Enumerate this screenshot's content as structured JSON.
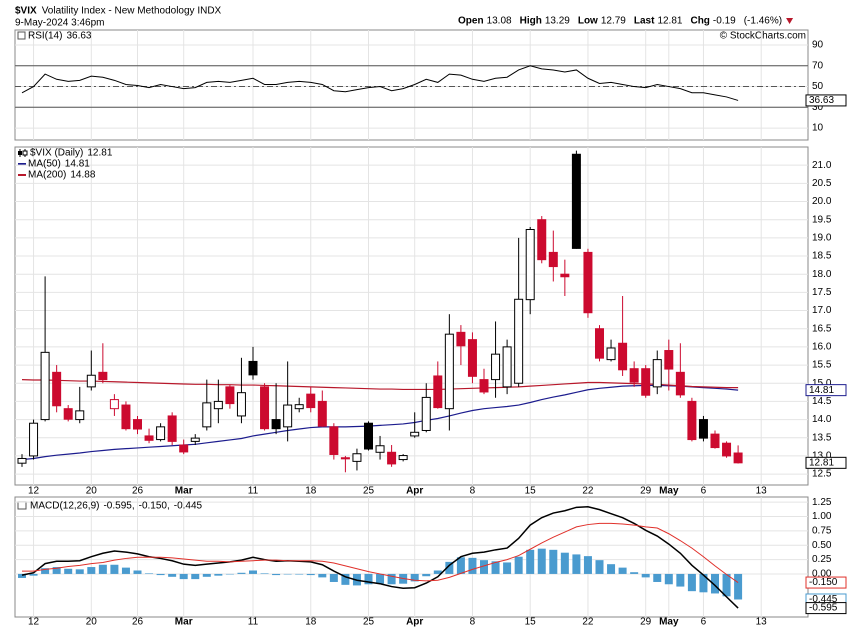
{
  "header": {
    "symbol": "$VIX",
    "name": "Volatility Index - New Methodology INDX",
    "timestamp": "9-May-2024 3:46pm",
    "quote": [
      {
        "label": "Open",
        "value": 13.08
      },
      {
        "label": "High",
        "value": 13.29
      },
      {
        "label": "Low",
        "value": 12.79
      },
      {
        "label": "Last",
        "value": 12.81
      },
      {
        "label": "Chg",
        "value": -0.19
      }
    ],
    "change_pct": "(-1.46%)",
    "copyright": "© StockCharts.com"
  },
  "chart_data": [
    {
      "type": "line",
      "label": "RSI(14)",
      "last": 36.63,
      "color": "#000000",
      "ylim": [
        -1.5,
        104.5
      ],
      "yticks": [
        10,
        30,
        50,
        70,
        90
      ],
      "overbought": 70,
      "oversold": 30,
      "midline": 50,
      "values": [
        44,
        50,
        62,
        57,
        55,
        56,
        60,
        59,
        56,
        52,
        51,
        49,
        52,
        50,
        48,
        49,
        54,
        55,
        54,
        56,
        58,
        52,
        52,
        54,
        55,
        54,
        52,
        46,
        45,
        47,
        49,
        50,
        46,
        48,
        52,
        57,
        54,
        62,
        61,
        57,
        55,
        58,
        59,
        66,
        70,
        67,
        66,
        64,
        66,
        58,
        53,
        54,
        52,
        50,
        49,
        52,
        50,
        48,
        44,
        44,
        42,
        40,
        36.63,
        null,
        null
      ]
    },
    {
      "type": "candlestick",
      "label": "$VIX (Daily)",
      "last": 12.81,
      "up_color": "#ffffff",
      "down_color": "#cc0a2f",
      "ylim": [
        12.2,
        21.5
      ],
      "yticks": [
        12.5,
        {
          "value": 13,
          "label": "13.0"
        },
        13.5,
        {
          "value": 14,
          "label": "14.0"
        },
        14.5,
        {
          "value": 15,
          "label": "15.0"
        },
        15.5,
        {
          "value": 16,
          "label": "16.0"
        },
        16.5,
        {
          "value": 17,
          "label": "17.0"
        },
        17.5,
        {
          "value": 18,
          "label": "18.0"
        },
        18.5,
        {
          "value": 19,
          "label": "19.0"
        },
        19.5,
        {
          "value": 20,
          "label": "20.0"
        },
        20.5,
        {
          "value": 21,
          "label": "21.0"
        }
      ],
      "categories": [
        null,
        "12",
        null,
        null,
        null,
        null,
        "20",
        null,
        null,
        null,
        "26",
        null,
        null,
        null,
        "Mar",
        null,
        null,
        null,
        null,
        null,
        "11",
        null,
        null,
        null,
        null,
        "18",
        null,
        null,
        null,
        null,
        "25",
        null,
        null,
        null,
        "Apr",
        null,
        null,
        null,
        null,
        "8",
        null,
        null,
        null,
        null,
        "15",
        null,
        null,
        null,
        null,
        "22",
        null,
        null,
        null,
        null,
        "29",
        null,
        "May",
        null,
        null,
        "6",
        null,
        null,
        null,
        null,
        "13"
      ],
      "open": [
        12.8,
        13.0,
        14.0,
        15.3,
        14.3,
        14.0,
        14.9,
        15.3,
        14.3,
        14.4,
        14.0,
        13.55,
        13.45,
        14.1,
        13.3,
        13.4,
        13.8,
        14.3,
        14.9,
        14.1,
        15.6,
        14.9,
        14.0,
        13.8,
        14.3,
        14.7,
        14.5,
        13.8,
        12.95,
        12.85,
        13.9,
        13.1,
        13.1,
        12.9,
        13.55,
        13.7,
        15.2,
        14.3,
        16.4,
        16.2,
        15.1,
        15.1,
        14.9,
        15.0,
        17.3,
        19.5,
        18.6,
        18.0,
        21.3,
        18.6,
        16.5,
        15.65,
        16.1,
        15.4,
        15.4,
        14.9,
        15.9,
        15.3,
        14.5,
        14.0,
        13.6,
        13.35,
        13.08,
        null,
        null
      ],
      "high": [
        13.05,
        14.0,
        17.94,
        15.5,
        14.4,
        14.9,
        15.9,
        16.1,
        14.7,
        14.5,
        14.1,
        13.75,
        13.9,
        14.2,
        13.45,
        13.6,
        15.1,
        15.1,
        14.95,
        15.7,
        16.0,
        15.0,
        15.0,
        15.6,
        14.6,
        14.9,
        14.8,
        13.9,
        13.0,
        13.2,
        13.95,
        13.55,
        13.3,
        13.05,
        14.2,
        15.0,
        15.6,
        16.9,
        16.6,
        16.4,
        15.4,
        16.7,
        16.2,
        19.0,
        19.3,
        19.6,
        19.2,
        18.4,
        21.4,
        18.7,
        16.6,
        16.2,
        17.4,
        15.6,
        15.5,
        15.9,
        16.2,
        16.1,
        14.6,
        14.1,
        13.7,
        13.4,
        13.29,
        null,
        null
      ],
      "low": [
        12.7,
        12.9,
        13.95,
        14.2,
        13.95,
        13.9,
        14.8,
        15.0,
        14.1,
        13.7,
        13.6,
        13.35,
        13.4,
        13.3,
        13.05,
        13.3,
        13.7,
        13.9,
        14.3,
        13.9,
        15.1,
        13.7,
        13.6,
        13.4,
        14.2,
        14.2,
        13.8,
        12.9,
        12.55,
        12.6,
        13.15,
        12.9,
        12.7,
        12.85,
        13.5,
        13.65,
        14.3,
        13.7,
        15.5,
        15.0,
        14.7,
        14.6,
        14.7,
        14.9,
        16.9,
        18.3,
        17.8,
        17.4,
        18.7,
        16.8,
        15.6,
        15.6,
        15.2,
        14.9,
        14.6,
        14.7,
        14.8,
        14.6,
        13.4,
        13.4,
        13.2,
        12.95,
        12.79,
        null,
        null
      ],
      "close": [
        12.93,
        13.9,
        15.85,
        14.38,
        14.01,
        14.24,
        15.22,
        15.1,
        14.55,
        13.75,
        13.74,
        13.43,
        13.8,
        13.4,
        13.11,
        13.49,
        14.46,
        14.5,
        14.44,
        14.74,
        15.23,
        13.75,
        13.75,
        14.4,
        14.41,
        14.33,
        13.82,
        13.04,
        12.92,
        13.06,
        13.19,
        13.28,
        12.78,
        13.01,
        13.65,
        14.61,
        14.33,
        16.35,
        16.03,
        15.19,
        14.76,
        15.8,
        16.0,
        17.31,
        19.23,
        18.4,
        18.21,
        17.93,
        18.71,
        16.94,
        15.69,
        15.97,
        15.37,
        15.03,
        14.67,
        15.65,
        15.39,
        14.68,
        13.45,
        13.49,
        13.23,
        13.0,
        12.81,
        null,
        null
      ],
      "series": [
        {
          "name": "MA(50)",
          "last": 14.81,
          "color": "#1c1c8e",
          "values": [
            12.9,
            12.93,
            12.98,
            13.02,
            13.05,
            13.08,
            13.12,
            13.15,
            13.18,
            13.2,
            13.22,
            13.24,
            13.26,
            13.28,
            13.3,
            13.32,
            13.36,
            13.4,
            13.44,
            13.48,
            13.55,
            13.6,
            13.65,
            13.7,
            13.74,
            13.78,
            13.8,
            13.8,
            13.8,
            13.81,
            13.82,
            13.84,
            13.86,
            13.88,
            13.92,
            13.98,
            14.03,
            14.1,
            14.18,
            14.25,
            14.3,
            14.33,
            14.36,
            14.4,
            14.47,
            14.55,
            14.62,
            14.68,
            14.75,
            14.82,
            14.86,
            14.89,
            14.92,
            14.93,
            14.94,
            14.94,
            14.93,
            14.92,
            14.9,
            14.88,
            14.86,
            14.84,
            14.81,
            null,
            null
          ]
        },
        {
          "name": "MA(200)",
          "last": 14.88,
          "color": "#b8182b",
          "values": [
            15.1,
            15.09,
            15.09,
            15.08,
            15.07,
            15.06,
            15.06,
            15.05,
            15.04,
            15.03,
            15.02,
            15.01,
            15.0,
            14.99,
            14.98,
            14.97,
            14.97,
            14.96,
            14.96,
            14.95,
            14.95,
            14.94,
            14.93,
            14.92,
            14.91,
            14.9,
            14.89,
            14.88,
            14.87,
            14.86,
            14.85,
            14.84,
            14.84,
            14.83,
            14.83,
            14.83,
            14.83,
            14.84,
            14.85,
            14.86,
            14.87,
            14.88,
            14.89,
            14.9,
            14.92,
            14.94,
            14.96,
            14.98,
            15.0,
            15.02,
            15.02,
            15.01,
            15.0,
            14.99,
            14.98,
            14.97,
            14.95,
            14.93,
            14.91,
            14.9,
            14.89,
            14.88,
            14.88,
            null,
            null
          ]
        }
      ]
    },
    {
      "type": "macd",
      "label": "MACD(12,26,9)",
      "ylim": [
        -0.75,
        1.34
      ],
      "yticks": [
        1.25,
        {
          "value": 1,
          "label": "1.00"
        },
        0.75,
        {
          "value": 0.5,
          "label": "0.50"
        },
        0.25,
        {
          "value": 0,
          "label": "0.00"
        }
      ],
      "categories": [
        null,
        "12",
        null,
        null,
        null,
        null,
        "20",
        null,
        null,
        null,
        "26",
        null,
        null,
        null,
        "Mar",
        null,
        null,
        null,
        null,
        null,
        "11",
        null,
        null,
        null,
        null,
        "18",
        null,
        null,
        null,
        null,
        "25",
        null,
        null,
        null,
        "Apr",
        null,
        null,
        null,
        null,
        "8",
        null,
        null,
        null,
        null,
        "15",
        null,
        null,
        null,
        null,
        "22",
        null,
        null,
        null,
        null,
        "29",
        null,
        "May",
        null,
        null,
        "6",
        null,
        null,
        null,
        null,
        "13"
      ],
      "series": [
        {
          "name": "MACD",
          "kind": "line",
          "color": "#000000",
          "legend_label": "-0.595,",
          "last_label": "-0.595",
          "values": [
            -0.02,
            0.02,
            0.18,
            0.22,
            0.22,
            0.23,
            0.3,
            0.36,
            0.4,
            0.38,
            0.35,
            0.3,
            0.27,
            0.23,
            0.17,
            0.15,
            0.17,
            0.19,
            0.21,
            0.24,
            0.29,
            0.25,
            0.22,
            0.23,
            0.22,
            0.21,
            0.16,
            0.05,
            -0.05,
            -0.11,
            -0.14,
            -0.17,
            -0.22,
            -0.25,
            -0.24,
            -0.16,
            -0.05,
            0.15,
            0.3,
            0.36,
            0.38,
            0.42,
            0.45,
            0.62,
            0.85,
            0.98,
            1.06,
            1.1,
            1.16,
            1.17,
            1.12,
            1.05,
            0.98,
            0.88,
            0.76,
            0.66,
            0.52,
            0.36,
            0.15,
            -0.02,
            -0.2,
            -0.4,
            -0.595,
            null,
            null
          ]
        },
        {
          "name": "Signal",
          "kind": "line",
          "color": "#e0302a",
          "legend_label": "-0.150,",
          "last_label": "-0.150",
          "values": [
            0.05,
            0.05,
            0.08,
            0.1,
            0.13,
            0.15,
            0.18,
            0.2,
            0.24,
            0.27,
            0.29,
            0.29,
            0.29,
            0.28,
            0.26,
            0.24,
            0.22,
            0.22,
            0.21,
            0.22,
            0.23,
            0.24,
            0.24,
            0.23,
            0.23,
            0.23,
            0.22,
            0.19,
            0.14,
            0.09,
            0.04,
            0.0,
            -0.04,
            -0.08,
            -0.11,
            -0.12,
            -0.11,
            -0.06,
            0.01,
            0.08,
            0.14,
            0.2,
            0.25,
            0.32,
            0.43,
            0.54,
            0.64,
            0.73,
            0.82,
            0.86,
            0.88,
            0.88,
            0.87,
            0.85,
            0.82,
            0.8,
            0.7,
            0.58,
            0.45,
            0.3,
            0.14,
            -0.01,
            -0.15,
            null,
            null
          ]
        },
        {
          "name": "Histogram",
          "kind": "bar",
          "color": "#4a9bcf",
          "legend_label": "-0.445",
          "last_label": "-0.445",
          "values": [
            -0.07,
            -0.03,
            0.1,
            0.12,
            0.09,
            0.08,
            0.12,
            0.16,
            0.16,
            0.11,
            0.06,
            0.01,
            -0.02,
            -0.05,
            -0.09,
            -0.09,
            -0.05,
            -0.03,
            0.0,
            0.02,
            0.06,
            0.01,
            -0.02,
            0.0,
            -0.01,
            -0.02,
            -0.06,
            -0.14,
            -0.19,
            -0.2,
            -0.18,
            -0.17,
            -0.18,
            -0.17,
            -0.13,
            -0.04,
            0.06,
            0.21,
            0.29,
            0.28,
            0.24,
            0.22,
            0.2,
            0.3,
            0.42,
            0.44,
            0.42,
            0.37,
            0.34,
            0.31,
            0.24,
            0.17,
            0.11,
            0.03,
            -0.06,
            -0.14,
            -0.18,
            -0.22,
            -0.3,
            -0.32,
            -0.34,
            -0.39,
            -0.445,
            null,
            null
          ]
        }
      ]
    }
  ]
}
